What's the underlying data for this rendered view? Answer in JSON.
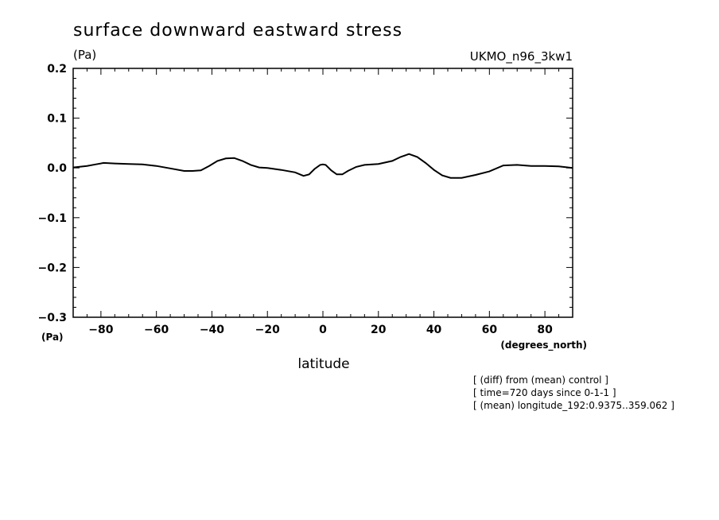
{
  "chart_data": {
    "type": "line",
    "title": "surface downward eastward stress",
    "y_unit_top": "(Pa)",
    "y_unit_bottom": "(Pa)",
    "model_label": "UKMO_n96_3kw1",
    "xlabel": "latitude",
    "x_unit": "(degrees_north)",
    "xlim": [
      -90,
      90
    ],
    "ylim": [
      -0.3,
      0.2
    ],
    "x_ticks": [
      -80,
      -60,
      -40,
      -20,
      0,
      20,
      40,
      60,
      80
    ],
    "x_tick_labels": [
      "−80",
      "−60",
      "−40",
      "−20",
      "0",
      "20",
      "40",
      "60",
      "80"
    ],
    "y_ticks": [
      0.2,
      0.1,
      0.0,
      -0.1,
      -0.2,
      -0.3
    ],
    "y_tick_labels": [
      "0.2",
      "0.1",
      "0.0",
      "−0.1",
      "−0.2",
      "−0.3"
    ],
    "notes": [
      "[ (diff) from (mean) control ]",
      "[ time=720 days since 0-1-1 ]",
      "[ (mean) longitude_192:0.9375..359.062 ]"
    ],
    "series": [
      {
        "x": [
          -90,
          -85,
          -82,
          -79,
          -75,
          -70,
          -65,
          -60,
          -55,
          -50,
          -47,
          -44,
          -41,
          -38,
          -35,
          -32,
          -29,
          -26,
          -23,
          -20,
          -15,
          -10,
          -7,
          -5,
          -3,
          -1,
          0,
          1,
          3,
          5,
          7,
          9,
          12,
          15,
          20,
          25,
          28,
          31,
          34,
          37,
          40,
          43,
          46,
          50,
          55,
          60,
          65,
          70,
          75,
          80,
          85,
          90
        ],
        "y": [
          0.001,
          0.004,
          0.007,
          0.01,
          0.009,
          0.008,
          0.007,
          0.004,
          -0.001,
          -0.006,
          -0.006,
          -0.005,
          0.004,
          0.014,
          0.019,
          0.02,
          0.014,
          0.006,
          0.001,
          0.0,
          -0.004,
          -0.009,
          -0.016,
          -0.013,
          -0.002,
          0.006,
          0.007,
          0.006,
          -0.005,
          -0.013,
          -0.013,
          -0.006,
          0.002,
          0.006,
          0.008,
          0.014,
          0.022,
          0.028,
          0.022,
          0.01,
          -0.004,
          -0.015,
          -0.02,
          -0.02,
          -0.014,
          -0.007,
          0.005,
          0.006,
          0.004,
          0.004,
          0.003,
          0.0
        ]
      }
    ],
    "grid": false
  }
}
